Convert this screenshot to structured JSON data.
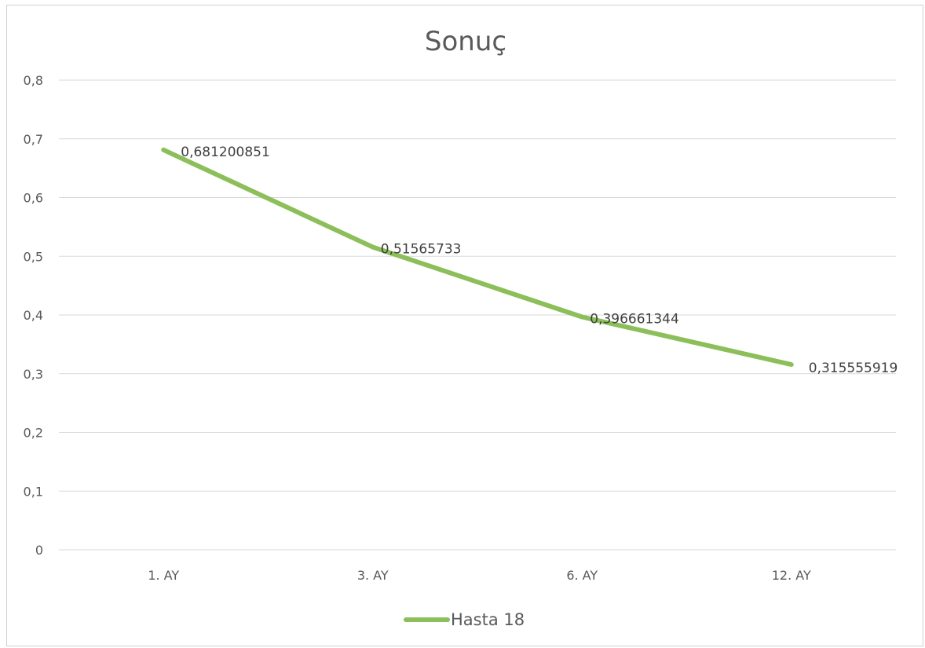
{
  "chart_data": {
    "type": "line",
    "title": "Sonuç",
    "xlabel": "",
    "ylabel": "",
    "categories": [
      "1. AY",
      "3. AY",
      "6. AY",
      "12. AY"
    ],
    "series": [
      {
        "name": "Hasta 18",
        "values": [
          0.681200851,
          0.51565733,
          0.396661344,
          0.315555919
        ],
        "labels": [
          "0,681200851",
          "0,51565733",
          "0,396661344",
          "0,315555919"
        ],
        "color": "#8cbf5a"
      }
    ],
    "ylim": [
      0,
      0.8
    ],
    "y_ticks": [
      0,
      0.1,
      0.2,
      0.3,
      0.4,
      0.5,
      0.6,
      0.7,
      0.8
    ],
    "y_tick_labels": [
      "0",
      "0,1",
      "0,2",
      "0,3",
      "0,4",
      "0,5",
      "0,6",
      "0,7",
      "0,8"
    ],
    "grid": true,
    "legend_position": "bottom",
    "colors": {
      "gridline": "#d9d9d9",
      "text": "#595959",
      "border": "#d0d0d0"
    }
  }
}
